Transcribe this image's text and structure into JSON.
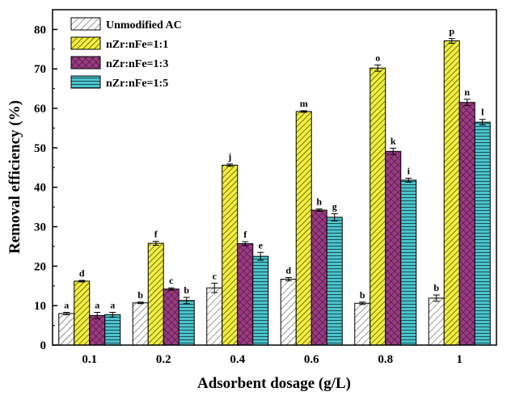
{
  "chart_data": {
    "type": "bar",
    "xlabel": "Adsorbent dosage (g/L)",
    "ylabel": "Removal efficiency (%)",
    "ylim": [
      0,
      85
    ],
    "yticks": [
      0,
      10,
      20,
      30,
      40,
      50,
      60,
      70,
      80
    ],
    "categories": [
      "0.1",
      "0.2",
      "0.4",
      "0.6",
      "0.8",
      "1"
    ],
    "legend_position": "top-left",
    "grid": false,
    "series": [
      {
        "name": "Unmodified AC",
        "color": "#ffffff",
        "pattern": "diagonal-hatch-light",
        "values": [
          8.0,
          10.7,
          14.5,
          16.7,
          10.6,
          11.9
        ],
        "errors": [
          0.3,
          0.2,
          1.2,
          0.4,
          0.3,
          0.8
        ],
        "letters": [
          "a",
          "b",
          "c",
          "d",
          "b",
          "b"
        ]
      },
      {
        "name": "nZr:nFe=1:1",
        "color": "#f2ee3a",
        "pattern": "diagonal-hatch",
        "values": [
          16.2,
          25.8,
          45.6,
          59.2,
          70.2,
          77.1
        ],
        "errors": [
          0.2,
          0.5,
          0.3,
          0.2,
          0.8,
          0.6
        ],
        "letters": [
          "d",
          "f",
          "j",
          "m",
          "o",
          "p"
        ]
      },
      {
        "name": "nZr:nFe=1:3",
        "color": "#9b3a82",
        "pattern": "cross-hatch",
        "values": [
          7.5,
          14.2,
          25.7,
          34.2,
          49.1,
          61.5
        ],
        "errors": [
          0.8,
          0.3,
          0.5,
          0.3,
          0.8,
          0.8
        ],
        "letters": [
          "a",
          "c",
          "f",
          "h",
          "k",
          "n"
        ]
      },
      {
        "name": "nZr:nFe=1:5",
        "color": "#4bc4cc",
        "pattern": "horizontal-lines",
        "values": [
          7.7,
          11.3,
          22.5,
          32.4,
          41.8,
          56.5
        ],
        "errors": [
          0.6,
          0.8,
          1.0,
          0.9,
          0.5,
          0.7
        ],
        "letters": [
          "a",
          "b",
          "e",
          "g",
          "i",
          "l"
        ]
      }
    ]
  }
}
